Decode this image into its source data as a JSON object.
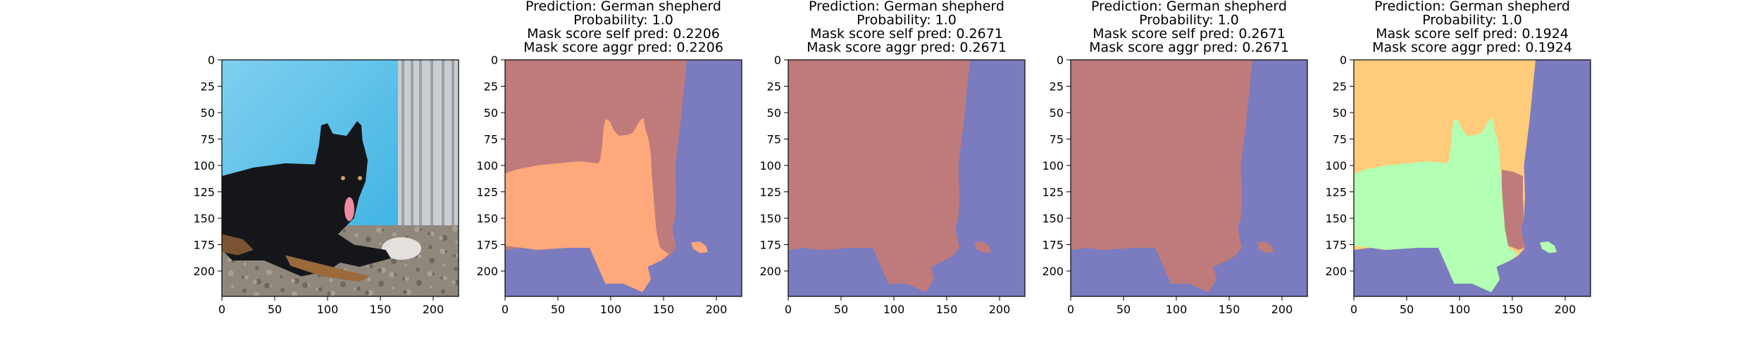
{
  "chart_data": {
    "type": "image_panels",
    "xlim": [
      0,
      224
    ],
    "ylim": [
      224,
      0
    ],
    "xticks": [
      0,
      50,
      100,
      150,
      200
    ],
    "yticks": [
      0,
      25,
      50,
      75,
      100,
      125,
      150,
      175,
      200
    ],
    "panels": [
      {
        "kind": "photo",
        "content": "black-german-shepherd-lying-on-gravel-before-blue-tarp-and-fence",
        "title_lines": []
      },
      {
        "kind": "segmentation",
        "title_lines": [
          "Prediction: German shepherd",
          "Probability: 1.0",
          "Mask score self pred: 0.2206",
          "Mask score aggr pred: 0.2206"
        ],
        "colors": {
          "background": "#bf7b7b",
          "foreground": "#ffa87b",
          "right": "#7b7bbf",
          "extra": "#bf7b7b"
        }
      },
      {
        "kind": "segmentation",
        "title_lines": [
          "Prediction: German shepherd",
          "Probability: 1.0",
          "Mask score self pred: 0.2671",
          "Mask score aggr pred: 0.2671"
        ],
        "colors": {
          "background": "#bf7b7b",
          "foreground": "#bf7b7b",
          "right": "#7b7bbf",
          "extra": "#bf7b7b"
        }
      },
      {
        "kind": "segmentation",
        "title_lines": [
          "Prediction: German shepherd",
          "Probability: 1.0",
          "Mask score self pred: 0.2671",
          "Mask score aggr pred: 0.2671"
        ],
        "colors": {
          "background": "#bf7b7b",
          "foreground": "#bf7b7b",
          "right": "#7b7bbf",
          "extra": "#bf7b7b"
        }
      },
      {
        "kind": "segmentation",
        "title_lines": [
          "Prediction: German shepherd",
          "Probability: 1.0",
          "Mask score self pred: 0.1924",
          "Mask score aggr pred: 0.1924"
        ],
        "colors": {
          "background": "#ffcc7b",
          "foreground": "#b3ffb3",
          "right": "#7b7bbf",
          "extra": "#bf7b7b"
        }
      }
    ]
  }
}
